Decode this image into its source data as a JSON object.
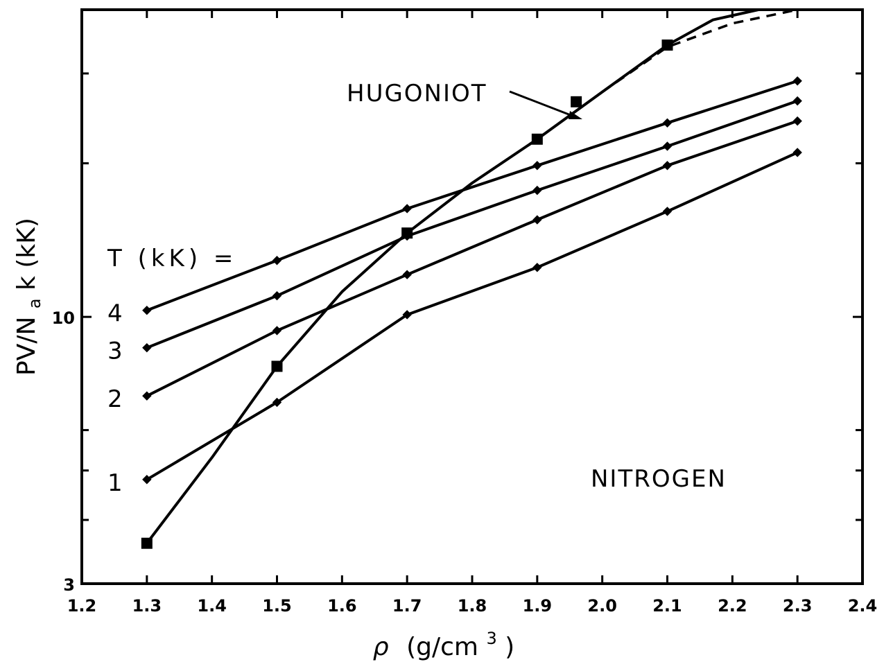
{
  "chart_data": {
    "type": "line",
    "title": "",
    "xlabel_parts": {
      "rho": "ρ",
      "unit": "(g/cm",
      "sup": "3",
      "close": ")"
    },
    "ylabel_parts": {
      "main": "PV/N",
      "sub": "a",
      "tail": "k (kK)"
    },
    "xlim": [
      1.2,
      2.4
    ],
    "ylim": [
      3,
      40
    ],
    "y_scale": "log",
    "x_ticks": [
      "1.2",
      "1.3",
      "1.4",
      "1.5",
      "1.6",
      "1.7",
      "1.8",
      "1.9",
      "2.0",
      "2.1",
      "2.2",
      "2.3",
      "2.4"
    ],
    "y_tick_labels": [
      {
        "value": 3,
        "label": "3"
      },
      {
        "value": 10,
        "label": "10"
      }
    ],
    "y_minor_ticks": [
      4,
      5,
      6,
      20,
      30
    ],
    "annotations": {
      "hugoniot": "HUGONIOT",
      "nitrogen": "NITROGEN",
      "t_label": "T (kK) ="
    },
    "series": [
      {
        "name": "4",
        "x": [
          1.3,
          1.5,
          1.7,
          1.9,
          2.1,
          2.3
        ],
        "y": [
          10.3,
          12.9,
          16.3,
          19.8,
          24.0,
          29.0
        ]
      },
      {
        "name": "3",
        "x": [
          1.3,
          1.5,
          1.7,
          1.9,
          2.1,
          2.3
        ],
        "y": [
          8.7,
          11.0,
          14.4,
          17.7,
          21.6,
          26.5
        ]
      },
      {
        "name": "2",
        "x": [
          1.3,
          1.5,
          1.7,
          1.9,
          2.1,
          2.3
        ],
        "y": [
          7.0,
          9.4,
          12.1,
          15.5,
          19.8,
          24.2
        ]
      },
      {
        "name": "1",
        "x": [
          1.3,
          1.5,
          1.7,
          1.9,
          2.1,
          2.3
        ],
        "y": [
          4.8,
          6.8,
          10.1,
          12.5,
          16.1,
          21.0
        ]
      }
    ],
    "hugoniot": {
      "points": [
        {
          "x": 1.3,
          "y": 3.6
        },
        {
          "x": 1.5,
          "y": 8.0
        },
        {
          "x": 1.7,
          "y": 14.6
        },
        {
          "x": 1.9,
          "y": 22.3
        },
        {
          "x": 1.96,
          "y": 26.4
        },
        {
          "x": 2.1,
          "y": 34.1
        }
      ],
      "solid_curve": [
        {
          "x": 1.3,
          "y": 3.6
        },
        {
          "x": 1.4,
          "y": 5.3
        },
        {
          "x": 1.5,
          "y": 8.0
        },
        {
          "x": 1.6,
          "y": 11.2
        },
        {
          "x": 1.7,
          "y": 14.6
        },
        {
          "x": 1.8,
          "y": 18.3
        },
        {
          "x": 1.9,
          "y": 22.3
        },
        {
          "x": 2.0,
          "y": 27.6
        },
        {
          "x": 2.1,
          "y": 34.1
        },
        {
          "x": 2.17,
          "y": 38.2
        },
        {
          "x": 2.24,
          "y": 42.5
        }
      ],
      "dashed_curve": [
        {
          "x": 2.0,
          "y": 27.6
        },
        {
          "x": 2.1,
          "y": 33.8
        },
        {
          "x": 2.2,
          "y": 37.6
        },
        {
          "x": 2.3,
          "y": 40.0
        }
      ]
    }
  }
}
